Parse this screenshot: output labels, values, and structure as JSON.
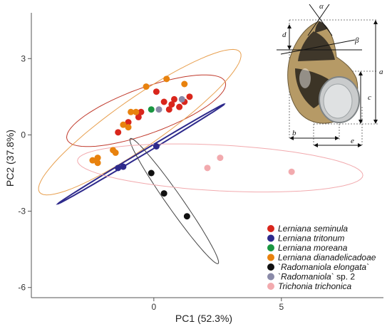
{
  "chart_data": {
    "type": "scatter",
    "title": "",
    "xlabel": "PC1 (52.3%)",
    "ylabel": "PC2 (37.8%)",
    "xlim": [
      -4.8,
      9.0
    ],
    "ylim": [
      -6.4,
      4.8
    ],
    "xticks": [
      0,
      5
    ],
    "yticks": [
      3,
      0,
      -3,
      -6
    ],
    "xtick_labels": [
      "0",
      "5"
    ],
    "ytick_labels": [
      "3",
      "0",
      "-3",
      "-6"
    ],
    "grid": false,
    "legend_position": "bottom-right",
    "legend": [
      {
        "parts": [
          {
            "text": "Lerniana seminula",
            "italic": true
          }
        ],
        "color": "#d9261c"
      },
      {
        "parts": [
          {
            "text": "Lerniana tritonum",
            "italic": true
          }
        ],
        "color": "#2e2a8c"
      },
      {
        "parts": [
          {
            "text": "Lerniana moreana",
            "italic": true
          }
        ],
        "color": "#1a9641"
      },
      {
        "parts": [
          {
            "text": "Lerniana dianadelicadoae",
            "italic": true
          }
        ],
        "color": "#e8820e"
      },
      {
        "parts": [
          {
            "text": "`Radomaniola elongata`",
            "italic": true
          }
        ],
        "color": "#111111"
      },
      {
        "parts": [
          {
            "text": "`Radomaniola`",
            "italic": true
          },
          {
            "text": " sp. 2",
            "italic": false
          }
        ],
        "color": "#8a8aa8"
      },
      {
        "parts": [
          {
            "text": "Trichonia trichonica",
            "italic": true
          }
        ],
        "color": "#f2aaae"
      }
    ],
    "series": [
      {
        "key": "red",
        "color": "#d9261c",
        "points": [
          [
            -1.4,
            0.1
          ],
          [
            -1.0,
            0.5
          ],
          [
            -0.6,
            0.7
          ],
          [
            -0.5,
            0.9
          ],
          [
            0.1,
            1.7
          ],
          [
            0.4,
            1.3
          ],
          [
            0.6,
            1.0
          ],
          [
            0.8,
            1.4
          ],
          [
            0.7,
            1.2
          ],
          [
            1.0,
            1.1
          ],
          [
            1.2,
            1.3
          ],
          [
            1.4,
            1.5
          ]
        ],
        "ellipse": {
          "cx": -0.3,
          "cy": 0.95,
          "rx": 3.3,
          "ry": 0.9,
          "angle_deg": 20,
          "color": "#c0392b"
        }
      },
      {
        "key": "orange",
        "color": "#e8820e",
        "points": [
          [
            -2.4,
            -1.0
          ],
          [
            -2.2,
            -1.1
          ],
          [
            -2.2,
            -0.9
          ],
          [
            -1.6,
            -0.6
          ],
          [
            -1.5,
            -0.7
          ],
          [
            -1.2,
            0.4
          ],
          [
            -0.9,
            0.9
          ],
          [
            -0.7,
            0.9
          ],
          [
            -0.3,
            1.9
          ],
          [
            0.5,
            2.2
          ],
          [
            1.2,
            2.0
          ],
          [
            -1.0,
            0.3
          ]
        ],
        "ellipse": {
          "cx": -0.55,
          "cy": 0.5,
          "rx": 4.8,
          "ry": 0.95,
          "angle_deg": 35,
          "color": "#e8a050"
        }
      },
      {
        "key": "green",
        "color": "#1a9641",
        "points": [
          [
            -0.1,
            1.0
          ]
        ],
        "ellipse": null
      },
      {
        "key": "grey",
        "color": "#8a8aa8",
        "points": [
          [
            0.2,
            1.0
          ],
          [
            1.1,
            1.4
          ]
        ],
        "ellipse": null
      },
      {
        "key": "navy",
        "color": "#2e2a8c",
        "points": [
          [
            -1.4,
            -1.3
          ],
          [
            -1.2,
            -1.25
          ],
          [
            0.1,
            -0.45
          ]
        ],
        "ellipse": {
          "cx": -0.5,
          "cy": -0.75,
          "rx": 3.8,
          "ry": 0.07,
          "angle_deg": 31,
          "color": "#2e2a8c"
        }
      },
      {
        "key": "black",
        "color": "#111111",
        "points": [
          [
            -0.1,
            -1.5
          ],
          [
            0.4,
            -2.3
          ],
          [
            1.3,
            -3.2
          ]
        ],
        "ellipse": {
          "cx": 0.8,
          "cy": -2.6,
          "rx": 3.0,
          "ry": 0.3,
          "angle_deg": -55,
          "color": "#444444"
        }
      },
      {
        "key": "pink",
        "color": "#f2aaae",
        "points": [
          [
            2.1,
            -1.3
          ],
          [
            2.6,
            -0.9
          ],
          [
            5.4,
            -1.45
          ]
        ],
        "ellipse": {
          "cx": 2.6,
          "cy": -1.3,
          "rx": 5.6,
          "ry": 0.9,
          "angle_deg": -3,
          "color": "#f2aaae"
        }
      }
    ]
  },
  "shell_diagram": {
    "labels": {
      "a": "a",
      "b": "b",
      "c": "c",
      "d": "d",
      "e": "e",
      "alpha": "α",
      "beta": "β"
    }
  }
}
